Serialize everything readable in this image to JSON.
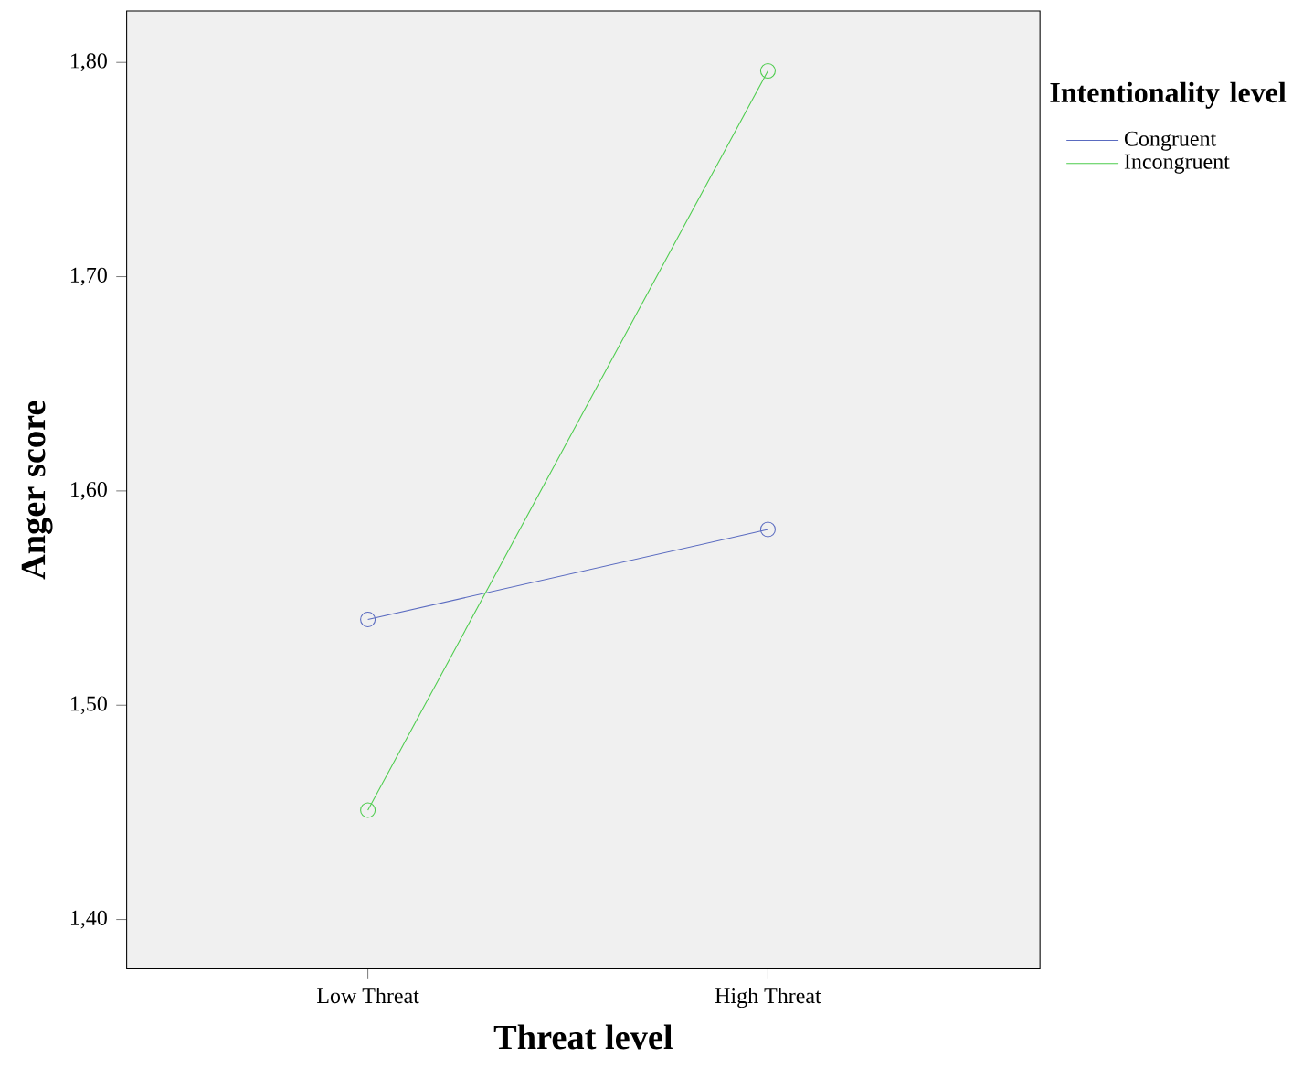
{
  "chart_data": {
    "type": "line",
    "xlabel": "Threat level",
    "ylabel": "Anger score",
    "legend_title": "Intentionality level",
    "categories": [
      "Low Threat",
      "High Threat"
    ],
    "series": [
      {
        "name": "Congruent",
        "color": "#5a6bc0",
        "values": [
          1.54,
          1.582
        ]
      },
      {
        "name": "Incongruent",
        "color": "#4ccc4c",
        "values": [
          1.451,
          1.796
        ]
      }
    ],
    "ylim": [
      1.377,
      1.824
    ],
    "yticks": [
      {
        "value": 1.4,
        "label": "1,40"
      },
      {
        "value": 1.5,
        "label": "1,50"
      },
      {
        "value": 1.6,
        "label": "1,60"
      },
      {
        "value": 1.7,
        "label": "1,70"
      },
      {
        "value": 1.8,
        "label": "1,80"
      }
    ],
    "legend": "top right",
    "marker": "circle",
    "line_style": "solid",
    "grid": false
  }
}
